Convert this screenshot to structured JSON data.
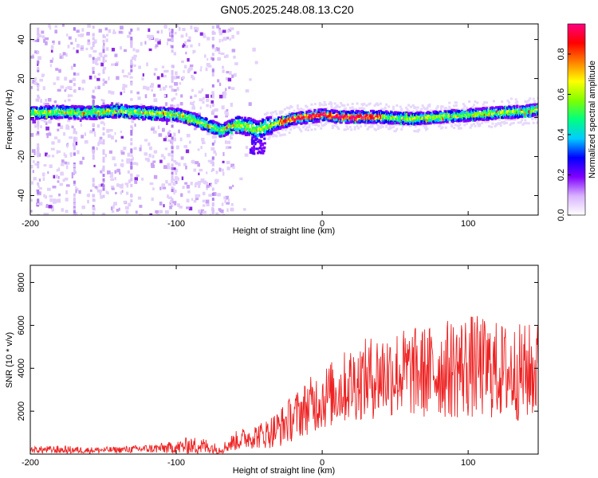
{
  "title": "GN05.2025.248.08.13.C20",
  "chart_data": [
    {
      "type": "heatmap",
      "xlabel": "Height of straight line (km)",
      "ylabel": "Frequency (Hz)",
      "xlim": [
        -200,
        148
      ],
      "ylim": [
        -50,
        48
      ],
      "xticks": [
        -200,
        -100,
        0,
        100
      ],
      "yticks": [
        -40,
        -20,
        0,
        20,
        40
      ],
      "colorbar": {
        "label": "Normalized spectral amplitude",
        "range": [
          0,
          0.95
        ],
        "ticks": [
          0.0,
          0.2,
          0.4,
          0.6,
          0.8
        ],
        "tick_labels": [
          "0.0",
          "0.2",
          "0.4",
          "0.6",
          "0.8"
        ],
        "colormap": [
          "#ffffff",
          "#d9b3ff",
          "#8000ff",
          "#0000ff",
          "#00ccff",
          "#00ff80",
          "#80ff00",
          "#ffff00",
          "#ff8000",
          "#ff0000",
          "#ff0080"
        ]
      },
      "ridge": {
        "x": [
          -200,
          -180,
          -160,
          -140,
          -120,
          -100,
          -90,
          -80,
          -70,
          -60,
          -50,
          -45,
          -40,
          -30,
          -20,
          -10,
          0,
          10,
          20,
          40,
          60,
          80,
          100,
          120,
          140,
          148
        ],
        "y": [
          3,
          3.5,
          3,
          4,
          3,
          2,
          0,
          -3,
          -6,
          -3,
          -4,
          -6,
          -4,
          -2,
          0,
          1,
          2,
          1,
          1,
          1,
          0,
          1,
          2,
          3,
          4,
          5
        ]
      }
    },
    {
      "type": "line",
      "xlabel": "Height of straight line (km)",
      "ylabel": "SNR (10 * v/v)",
      "xlim": [
        -200,
        148
      ],
      "ylim": [
        0,
        8800
      ],
      "xticks": [
        -200,
        -100,
        0,
        100
      ],
      "yticks": [
        2000,
        4000,
        6000,
        8000
      ],
      "color": "#ee2222",
      "envelope": {
        "x": [
          -200,
          -180,
          -160,
          -140,
          -120,
          -100,
          -90,
          -80,
          -70,
          -60,
          -50,
          -40,
          -30,
          -20,
          -10,
          0,
          10,
          20,
          30,
          40,
          50,
          60,
          70,
          80,
          90,
          100,
          110,
          120,
          130,
          140,
          148
        ],
        "mean": [
          200,
          200,
          180,
          200,
          250,
          300,
          400,
          350,
          200,
          600,
          800,
          900,
          1200,
          1700,
          2200,
          2600,
          2900,
          3300,
          3500,
          3700,
          3800,
          3800,
          3800,
          3900,
          4000,
          4100,
          4000,
          3900,
          3800,
          3800,
          3900
        ],
        "spread": [
          150,
          200,
          150,
          150,
          200,
          300,
          450,
          400,
          200,
          450,
          550,
          650,
          900,
          1100,
          1300,
          1500,
          1600,
          1800,
          1900,
          2100,
          2100,
          2100,
          2200,
          2200,
          2400,
          2500,
          2400,
          2300,
          2300,
          2300,
          2300
        ]
      }
    }
  ]
}
